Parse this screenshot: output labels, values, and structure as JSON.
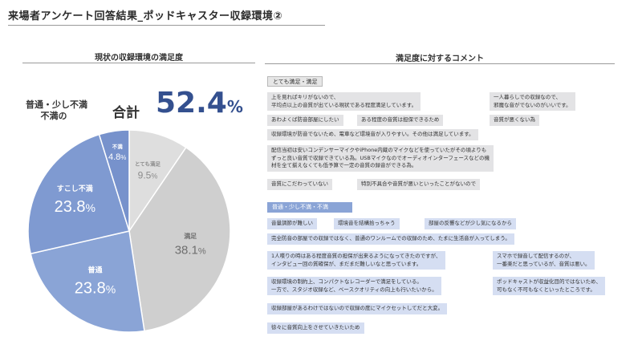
{
  "page_title": "来場者アンケート回答結果_ポッドキャスター収録環境②",
  "left_section": {
    "heading": "現状の収録環境の満足度",
    "summary_label_line1": "普通・少し不満",
    "summary_label_line2": "不満の",
    "summary_total_label": "合計",
    "summary_value_big": "52.4",
    "summary_value_small": "%"
  },
  "chart_data": {
    "type": "pie",
    "title": "現状の収録環境の満足度",
    "start": "top",
    "direction": "clockwise",
    "slices": [
      {
        "label": "とても満足",
        "value": 9.5,
        "color": "#dedede",
        "text_color": "#8c8c8c"
      },
      {
        "label": "満足",
        "value": 38.1,
        "color": "#cfcfcf",
        "text_color": "#6f6f6f"
      },
      {
        "label": "普通",
        "value": 23.8,
        "color": "#8aa4d6",
        "text_color": "#ffffff"
      },
      {
        "label": "すこし不満",
        "value": 23.8,
        "color": "#7f9ad1",
        "text_color": "#ffffff"
      },
      {
        "label": "不満",
        "value": 4.8,
        "color": "#7792cc",
        "text_color": "#ffffff"
      }
    ]
  },
  "right_section": {
    "heading": "満足度に対するコメント",
    "positive_header": "とても満足・満足",
    "positive_comments": [
      {
        "lines": [
          "上を見ればキリがないので、",
          "平均点以上の音質が出ている現状である程度満足しています。"
        ]
      },
      {
        "lines": [
          "一人暮らしでの収録なので、",
          "邪魔な音がでないのがいいです。"
        ]
      },
      {
        "lines": [
          "あわよくば防音部屋にしたい"
        ]
      },
      {
        "lines": [
          "ある程度の音質は担保できるため"
        ]
      },
      {
        "lines": [
          "音質が悪くない為"
        ]
      },
      {
        "lines": [
          "収録環境が防音でないため、電車など環境音が入りやすい。その他は満足しています。"
        ]
      },
      {
        "lines": [
          "配信当初は安いコンデンサーマイクやiPhone内蔵のマイクなどを使っていたがその頃よりも",
          "ずっと良い音質で収録できている為。USBマイクなのでオーディオインターフェースなどの機",
          "材を全て揃えなくても低予算で一定の音質の録音ができる為。"
        ]
      },
      {
        "lines": [
          "音質にこだわっていない"
        ]
      },
      {
        "lines": [
          "特別不具合や音質が悪いといったことがないので"
        ]
      }
    ],
    "negative_header": "普通・少し不満・不満",
    "negative_comments": [
      {
        "lines": [
          "音量調節が難しい"
        ]
      },
      {
        "lines": [
          "環境音を結構拾っちゃう"
        ]
      },
      {
        "lines": [
          "部屋の反響などが少し気になるから"
        ]
      },
      {
        "lines": [
          "完全防音の部屋での収録ではなく、普通のワンルームでの収録のため、たまに生活音が入ってしまう。"
        ]
      },
      {
        "lines": [
          "1人喋りの時はある程度音質の担保が出来るようになってきたのですが、",
          "インタビュー回の質確保が、まだまだ難しいなと思っています。"
        ]
      },
      {
        "lines": [
          "スマホで録音して配信するのが、",
          "一番楽だと思っているが、音質は悪い。"
        ]
      },
      {
        "lines": [
          "収録環境の制約上、コンパクトなレコーダーで満足をしている。",
          "一方で、スタジオ収録など、ベースクオリティの向上も行いたいから。"
        ]
      },
      {
        "lines": [
          "ポッドキャストが収益化目的ではないため、",
          "可もなく不可もなくといったところです。"
        ]
      },
      {
        "lines": [
          "収録部屋があるわけではないので収録の度にマイクセットしてだと大変。"
        ]
      },
      {
        "lines": [
          "徐々に音質向上をさせていきたいため"
        ]
      }
    ]
  }
}
